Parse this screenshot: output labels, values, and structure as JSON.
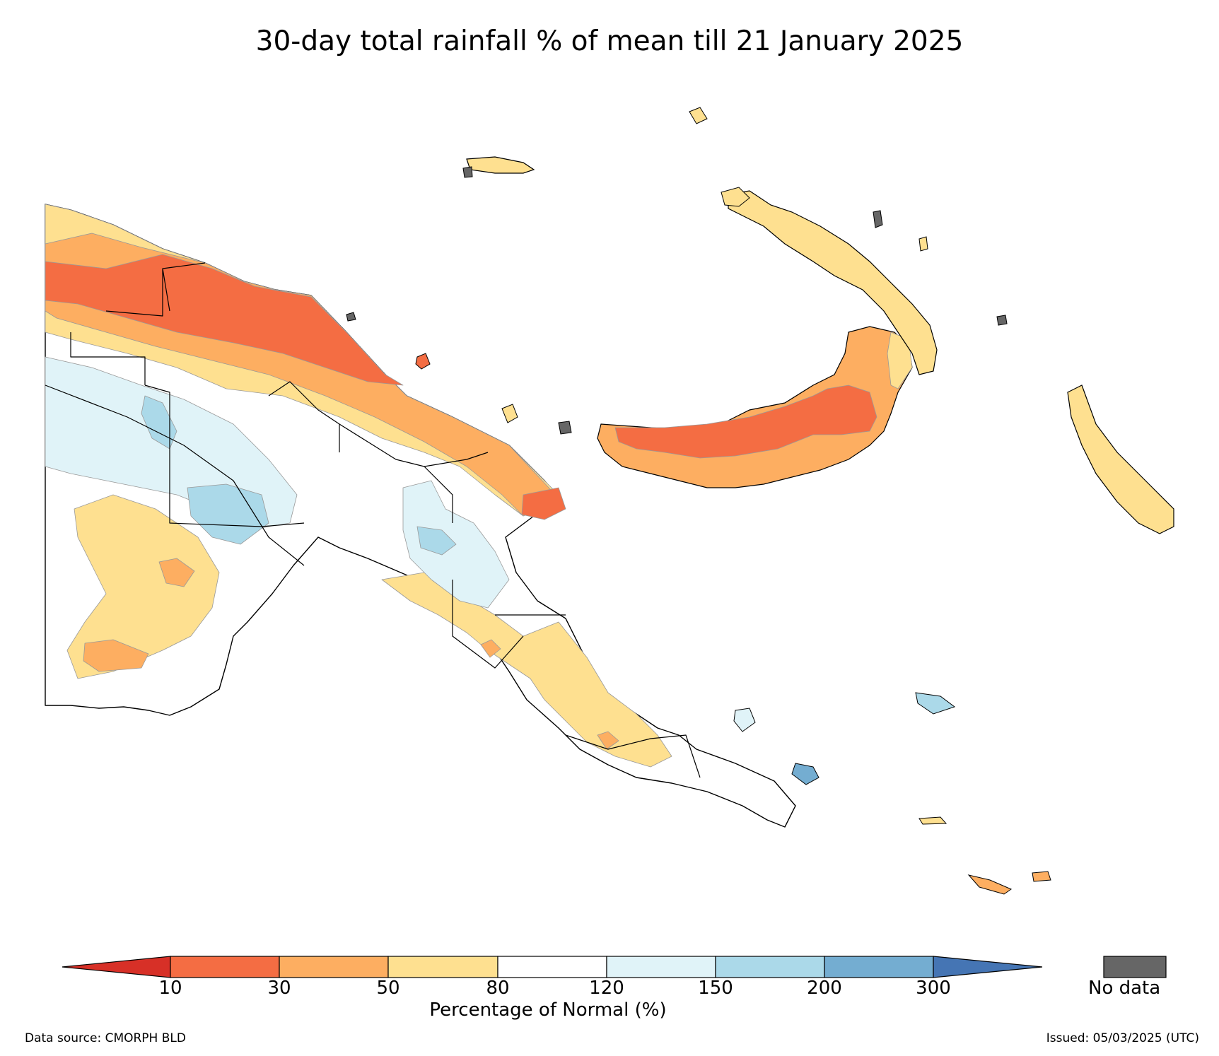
{
  "title": "30-day total rainfall % of mean till 21 January 2025",
  "colorbar": {
    "label": "Percentage of Normal (%)",
    "ticks": [
      "10",
      "30",
      "50",
      "80",
      "120",
      "150",
      "200",
      "300"
    ],
    "colors": [
      "#d73027",
      "#f46d43",
      "#fdae61",
      "#fee090",
      "#ffffff",
      "#e0f3f8",
      "#abd9e9",
      "#74add1",
      "#4575b4"
    ],
    "nodata_label": "No data",
    "nodata_color": "#666666"
  },
  "footer": {
    "source": "Data source: CMORPH BLD",
    "issued": "Issued: 05/03/2025 (UTC)"
  }
}
